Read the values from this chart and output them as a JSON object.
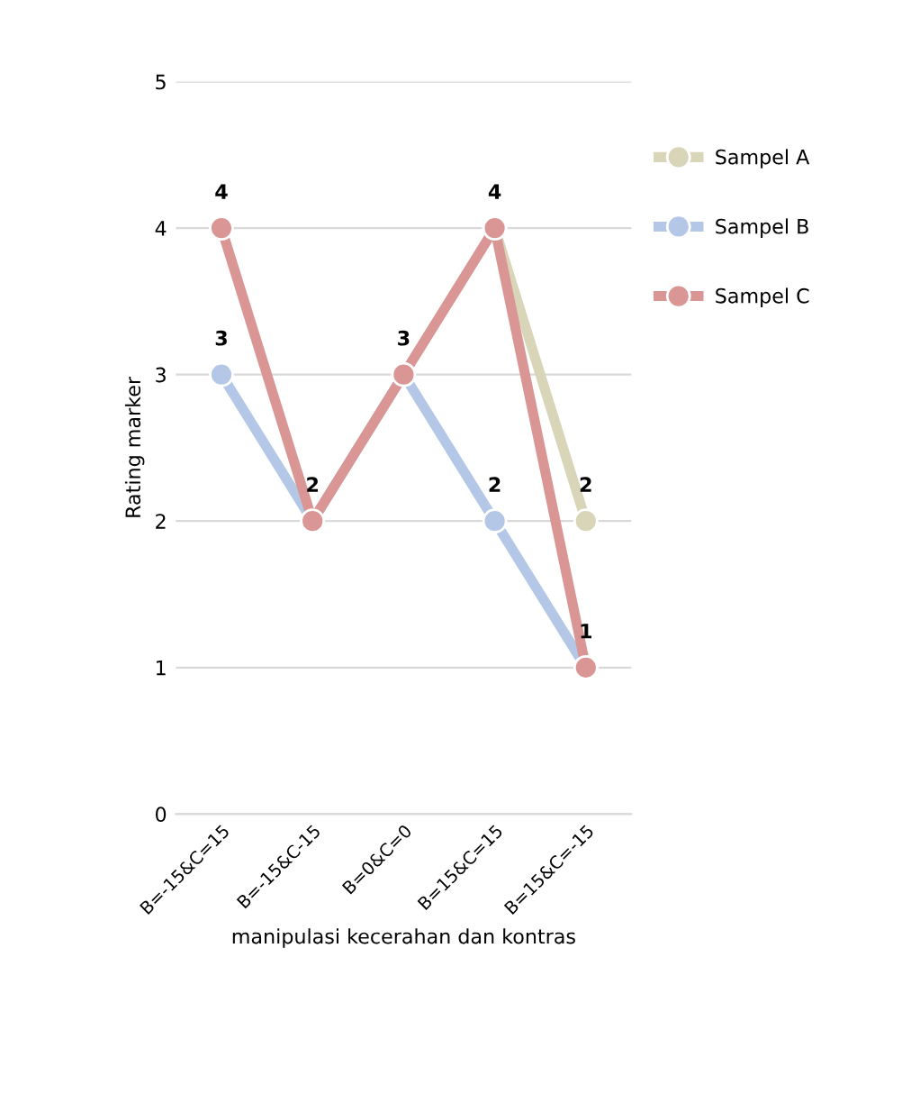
{
  "chart_data": {
    "type": "line",
    "xlabel": "manipulasi kecerahan dan kontras",
    "ylabel": "Rating marker",
    "categories": [
      "B=-15&C=15",
      "B=-15&C-15",
      "B=0&C=0",
      "B=15&C=15",
      "B=15&C=-15"
    ],
    "series": [
      {
        "name": "Sampel A",
        "color": "#d8d5b8",
        "values": [
          null,
          null,
          null,
          4,
          2
        ],
        "value_labels": [
          null,
          null,
          null,
          null,
          "2"
        ]
      },
      {
        "name": "Sampel B",
        "color": "#b4c7e7",
        "values": [
          3,
          2,
          3,
          2,
          1
        ],
        "value_labels": [
          "3",
          null,
          null,
          "2",
          null
        ]
      },
      {
        "name": "Sampel C",
        "color": "#d99694",
        "values": [
          4,
          2,
          3,
          4,
          1
        ],
        "value_labels": [
          "4",
          "2",
          "3",
          "4",
          "1"
        ]
      }
    ],
    "ylim": [
      0,
      5
    ],
    "yticks": [
      0,
      1,
      2,
      3,
      4,
      5
    ],
    "grid": "y",
    "legend": "right",
    "marker": "circle"
  }
}
